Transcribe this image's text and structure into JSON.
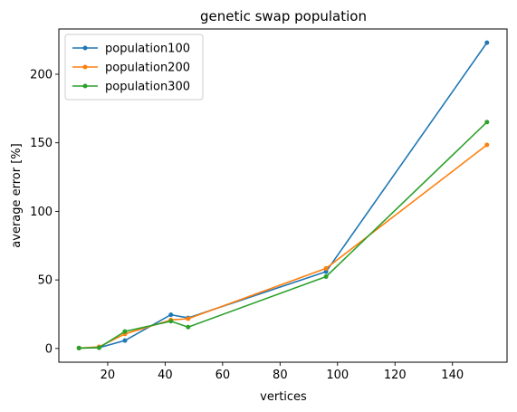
{
  "chart_data": {
    "type": "line",
    "title": "genetic swap population",
    "xlabel": "vertices",
    "ylabel": "average error [%]",
    "xlim": [
      3,
      159
    ],
    "ylim": [
      -10,
      233
    ],
    "xticks": [
      20,
      40,
      60,
      80,
      100,
      120,
      140
    ],
    "yticks": [
      0,
      50,
      100,
      150,
      200
    ],
    "grid": false,
    "legend_position": "upper-left",
    "series": [
      {
        "name": "population100",
        "color": "#1f77b4",
        "x": [
          10,
          17,
          26,
          42,
          48,
          96,
          152
        ],
        "y": [
          0.3,
          0.6,
          5.8,
          24.6,
          22.3,
          56.0,
          223.0
        ]
      },
      {
        "name": "population200",
        "color": "#ff7f0e",
        "x": [
          10,
          17,
          26,
          42,
          48,
          96,
          152
        ],
        "y": [
          0.3,
          1.2,
          10.6,
          20.8,
          21.7,
          58.4,
          148.5
        ]
      },
      {
        "name": "population300",
        "color": "#2ca02c",
        "x": [
          10,
          17,
          26,
          42,
          48,
          96,
          152
        ],
        "y": [
          0.3,
          0.6,
          12.4,
          19.9,
          15.6,
          52.4,
          165.1
        ]
      }
    ]
  }
}
